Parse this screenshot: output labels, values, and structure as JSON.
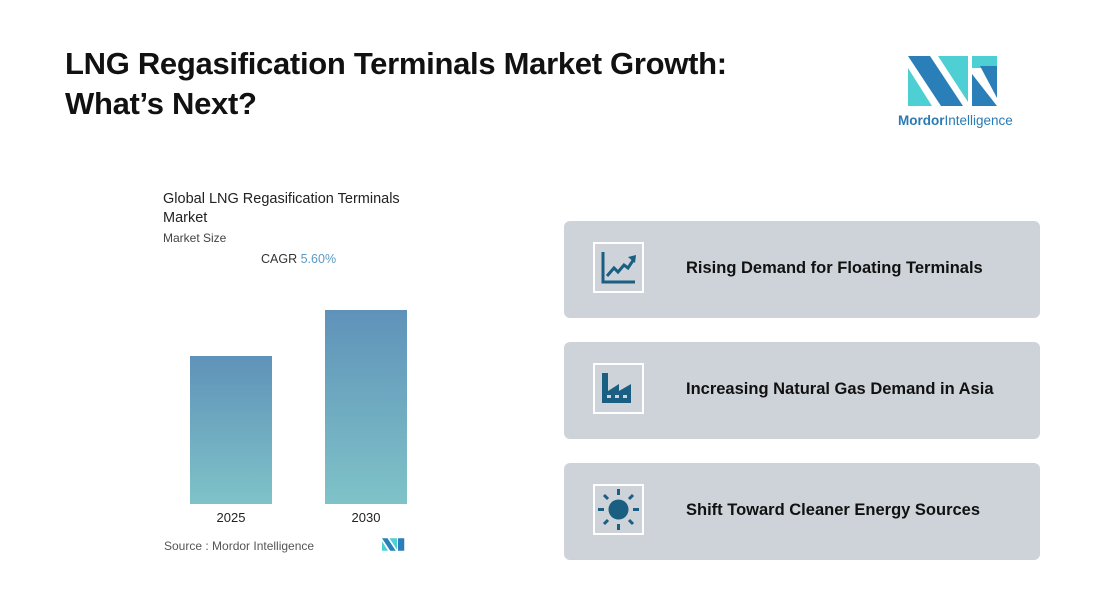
{
  "header": {
    "title_line1": "LNG Regasification Terminals Market Growth:",
    "title_line2": "What’s Next?"
  },
  "logo": {
    "text_bold": "Mordor",
    "text_light": "Intelligence",
    "colors": [
      "#2b7fb8",
      "#4ecfd4"
    ]
  },
  "chart_data": {
    "type": "bar",
    "title": "Global LNG Regasification Terminals Market",
    "subtitle": "Market Size",
    "annotation": {
      "label": "CAGR",
      "value": "5.60%"
    },
    "categories": [
      "2025",
      "2030"
    ],
    "values": [
      100,
      131
    ],
    "ylim": [
      0,
      135
    ],
    "grid": false,
    "source": "Source :  Mordor Intelligence",
    "colors": {
      "bar_top": "#5f92b9",
      "bar_bottom": "#7fc3c8",
      "cagr": "#5a9ac4"
    }
  },
  "cards": [
    {
      "label": "Rising Demand for Floating Terminals",
      "icon": "chart-trend-up-icon"
    },
    {
      "label": "Increasing Natural Gas Demand in Asia",
      "icon": "factory-icon"
    },
    {
      "label": "Shift Toward Cleaner Energy Sources",
      "icon": "sun-icon"
    }
  ],
  "colors": {
    "card_bg": "#ced3d9",
    "icon": "#1a5f82"
  }
}
